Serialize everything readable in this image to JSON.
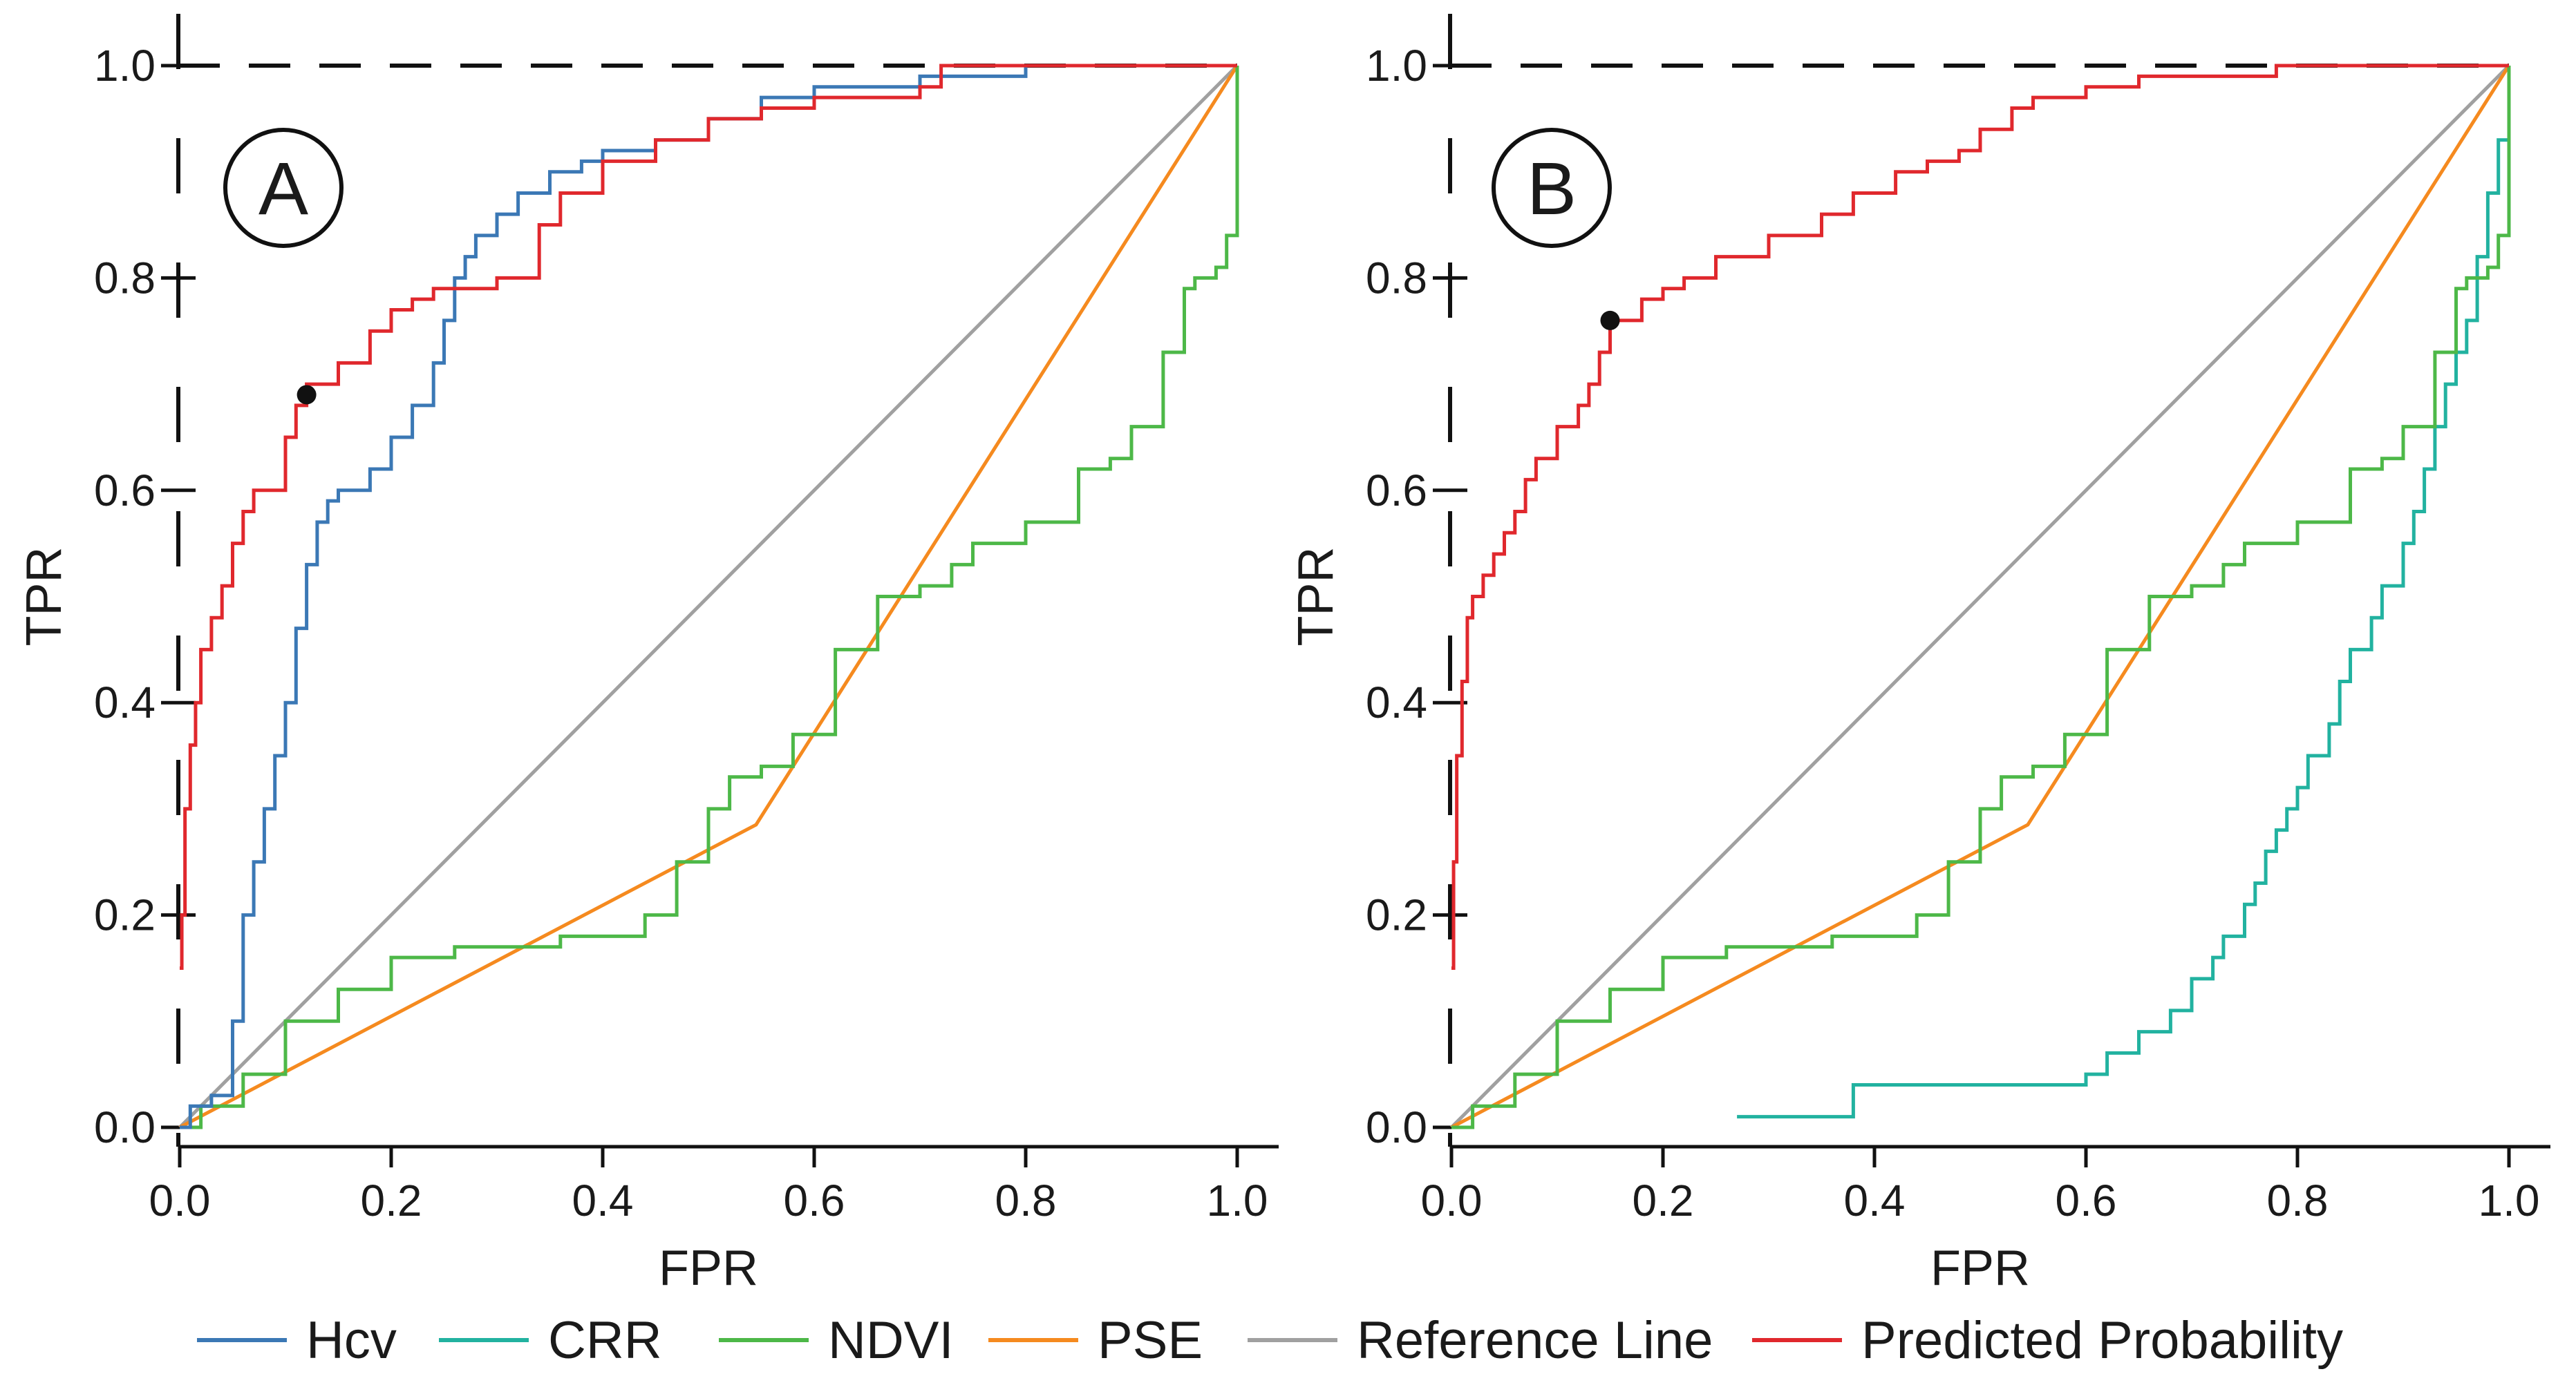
{
  "chart_data": {
    "type": "line",
    "xlabel": "FPR",
    "ylabel": "TPR",
    "xlim": [
      0,
      1
    ],
    "ylim": [
      0,
      1
    ],
    "x_ticks": [
      "0.0",
      "0.2",
      "0.4",
      "0.6",
      "0.8",
      "1.0"
    ],
    "y_ticks": [
      "0.0",
      "0.2",
      "0.4",
      "0.6",
      "0.8",
      "1.0"
    ],
    "legend_position": "bottom",
    "legend": [
      {
        "name": "Hcv",
        "color": "#3b78b5"
      },
      {
        "name": "CRR",
        "color": "#22b2a0"
      },
      {
        "name": "NDVI",
        "color": "#4db848"
      },
      {
        "name": "PSE",
        "color": "#f58a1f"
      },
      {
        "name": "Reference Line",
        "color": "#a0a0a0"
      },
      {
        "name": "Predicted Probability",
        "color": "#e0282d"
      }
    ],
    "panels": [
      {
        "label": "A",
        "marker": {
          "x": 0.12,
          "y": 0.69
        },
        "series": [
          {
            "name": "Reference Line",
            "color": "#a0a0a0",
            "step": false,
            "x": [
              0,
              1
            ],
            "y": [
              0,
              1
            ]
          },
          {
            "name": "PSE",
            "color": "#f58a1f",
            "step": false,
            "x": [
              0,
              0.545,
              1.0
            ],
            "y": [
              0,
              0.285,
              1.0
            ]
          },
          {
            "name": "NDVI",
            "color": "#4db848",
            "step": true,
            "x": [
              0,
              0.02,
              0.06,
              0.1,
              0.15,
              0.2,
              0.23,
              0.26,
              0.3,
              0.36,
              0.4,
              0.44,
              0.47,
              0.5,
              0.52,
              0.55,
              0.58,
              0.62,
              0.66,
              0.7,
              0.73,
              0.75,
              0.8,
              0.85,
              0.88,
              0.9,
              0.93,
              0.95,
              0.96,
              0.97,
              0.98,
              0.99,
              1.0,
              1.0
            ],
            "y": [
              0,
              0.02,
              0.05,
              0.1,
              0.13,
              0.16,
              0.16,
              0.17,
              0.17,
              0.18,
              0.18,
              0.2,
              0.25,
              0.3,
              0.33,
              0.34,
              0.37,
              0.45,
              0.5,
              0.51,
              0.53,
              0.55,
              0.57,
              0.62,
              0.63,
              0.66,
              0.73,
              0.79,
              0.8,
              0.8,
              0.81,
              0.84,
              0.84,
              1.0
            ]
          },
          {
            "name": "Hcv",
            "color": "#3b78b5",
            "step": true,
            "x": [
              0,
              0.01,
              0.03,
              0.05,
              0.06,
              0.07,
              0.08,
              0.09,
              0.1,
              0.11,
              0.12,
              0.13,
              0.14,
              0.15,
              0.18,
              0.2,
              0.22,
              0.24,
              0.25,
              0.26,
              0.27,
              0.28,
              0.3,
              0.32,
              0.35,
              0.38,
              0.4,
              0.45,
              0.5,
              0.55,
              0.6,
              0.7,
              0.8,
              1.0
            ],
            "y": [
              0,
              0.02,
              0.03,
              0.1,
              0.2,
              0.25,
              0.3,
              0.35,
              0.4,
              0.47,
              0.53,
              0.57,
              0.59,
              0.6,
              0.62,
              0.65,
              0.68,
              0.72,
              0.76,
              0.8,
              0.82,
              0.84,
              0.86,
              0.88,
              0.9,
              0.91,
              0.92,
              0.93,
              0.95,
              0.97,
              0.98,
              0.99,
              1.0,
              1.0
            ]
          },
          {
            "name": "Predicted Probability",
            "color": "#e0282d",
            "step": true,
            "x": [
              0,
              0.002,
              0.005,
              0.01,
              0.015,
              0.02,
              0.03,
              0.04,
              0.05,
              0.06,
              0.07,
              0.1,
              0.11,
              0.12,
              0.15,
              0.18,
              0.2,
              0.22,
              0.24,
              0.3,
              0.34,
              0.36,
              0.4,
              0.45,
              0.5,
              0.55,
              0.6,
              0.7,
              0.72,
              1.0
            ],
            "y": [
              0.15,
              0.2,
              0.3,
              0.36,
              0.4,
              0.45,
              0.48,
              0.51,
              0.55,
              0.58,
              0.6,
              0.65,
              0.68,
              0.7,
              0.72,
              0.75,
              0.77,
              0.78,
              0.79,
              0.8,
              0.85,
              0.88,
              0.91,
              0.93,
              0.95,
              0.96,
              0.97,
              0.98,
              1.0,
              1.0
            ]
          }
        ]
      },
      {
        "label": "B",
        "marker": {
          "x": 0.15,
          "y": 0.76
        },
        "series": [
          {
            "name": "Reference Line",
            "color": "#a0a0a0",
            "step": false,
            "x": [
              0,
              1
            ],
            "y": [
              0,
              1
            ]
          },
          {
            "name": "CRR",
            "color": "#22b2a0",
            "step": true,
            "x": [
              0.27,
              0.37,
              0.38,
              0.6,
              0.62,
              0.65,
              0.68,
              0.7,
              0.72,
              0.73,
              0.75,
              0.76,
              0.77,
              0.78,
              0.79,
              0.8,
              0.81,
              0.83,
              0.84,
              0.85,
              0.87,
              0.88,
              0.9,
              0.91,
              0.92,
              0.93,
              0.94,
              0.95,
              0.96,
              0.97,
              0.98,
              0.99,
              1.0,
              1.0
            ],
            "y": [
              0.01,
              0.01,
              0.04,
              0.05,
              0.07,
              0.09,
              0.11,
              0.14,
              0.16,
              0.18,
              0.21,
              0.23,
              0.26,
              0.28,
              0.3,
              0.32,
              0.35,
              0.38,
              0.42,
              0.45,
              0.48,
              0.51,
              0.55,
              0.58,
              0.62,
              0.66,
              0.7,
              0.73,
              0.76,
              0.82,
              0.88,
              0.93,
              0.97,
              1.0
            ]
          },
          {
            "name": "PSE",
            "color": "#f58a1f",
            "step": false,
            "x": [
              0,
              0.545,
              1.0
            ],
            "y": [
              0,
              0.285,
              1.0
            ]
          },
          {
            "name": "NDVI",
            "color": "#4db848",
            "step": true,
            "x": [
              0,
              0.02,
              0.06,
              0.1,
              0.15,
              0.2,
              0.23,
              0.26,
              0.3,
              0.36,
              0.4,
              0.44,
              0.47,
              0.5,
              0.52,
              0.55,
              0.58,
              0.62,
              0.66,
              0.7,
              0.73,
              0.75,
              0.8,
              0.85,
              0.88,
              0.9,
              0.93,
              0.95,
              0.96,
              0.97,
              0.98,
              0.99,
              1.0,
              1.0
            ],
            "y": [
              0,
              0.02,
              0.05,
              0.1,
              0.13,
              0.16,
              0.16,
              0.17,
              0.17,
              0.18,
              0.18,
              0.2,
              0.25,
              0.3,
              0.33,
              0.34,
              0.37,
              0.45,
              0.5,
              0.51,
              0.53,
              0.55,
              0.57,
              0.62,
              0.63,
              0.66,
              0.73,
              0.79,
              0.8,
              0.8,
              0.81,
              0.84,
              0.84,
              1.0
            ]
          },
          {
            "name": "Predicted Probability",
            "color": "#e0282d",
            "step": true,
            "x": [
              0,
              0.002,
              0.005,
              0.01,
              0.015,
              0.02,
              0.03,
              0.04,
              0.05,
              0.06,
              0.07,
              0.08,
              0.1,
              0.12,
              0.13,
              0.14,
              0.15,
              0.18,
              0.2,
              0.22,
              0.25,
              0.3,
              0.35,
              0.38,
              0.42,
              0.45,
              0.48,
              0.5,
              0.53,
              0.55,
              0.6,
              0.65,
              0.78,
              1.0
            ],
            "y": [
              0.15,
              0.25,
              0.35,
              0.42,
              0.48,
              0.5,
              0.52,
              0.54,
              0.56,
              0.58,
              0.61,
              0.63,
              0.66,
              0.68,
              0.7,
              0.73,
              0.76,
              0.78,
              0.79,
              0.8,
              0.82,
              0.84,
              0.86,
              0.88,
              0.9,
              0.91,
              0.92,
              0.94,
              0.96,
              0.97,
              0.98,
              0.99,
              1.0,
              1.0
            ]
          }
        ]
      }
    ]
  }
}
